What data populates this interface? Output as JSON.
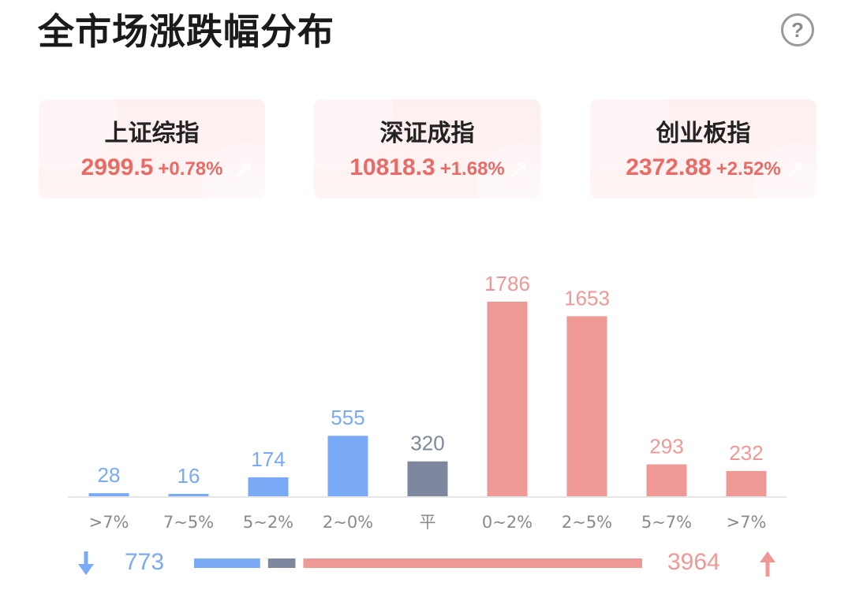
{
  "header": {
    "title": "全市场涨跌幅分布",
    "help_icon": "question-circle-icon"
  },
  "indices": [
    {
      "name": "上证综指",
      "value": "2999.5",
      "change": "+0.78%"
    },
    {
      "name": "深证成指",
      "value": "10818.3",
      "change": "+1.68%"
    },
    {
      "name": "创业板指",
      "value": "2372.88",
      "change": "+2.52%"
    }
  ],
  "colors": {
    "down": "#7aaaf5",
    "flat": "#7d879e",
    "up": "#ef9996",
    "up_text": "#e96b66",
    "label": "#8a8a8a"
  },
  "chart_data": {
    "type": "bar",
    "categories": [
      ">7%",
      "7~5%",
      "5~2%",
      "2~0%",
      "平",
      "0~2%",
      "2~5%",
      "5~7%",
      ">7%"
    ],
    "values": [
      28,
      16,
      174,
      555,
      320,
      1786,
      1653,
      293,
      232
    ],
    "bar_groups": [
      "down",
      "down",
      "down",
      "down",
      "flat",
      "up",
      "up",
      "up",
      "up"
    ],
    "ylim": [
      0,
      1786
    ],
    "grid": false
  },
  "summary": {
    "down_count": "773",
    "up_count": "3964",
    "down_icon": "arrow-down-icon",
    "up_icon": "arrow-up-icon"
  }
}
